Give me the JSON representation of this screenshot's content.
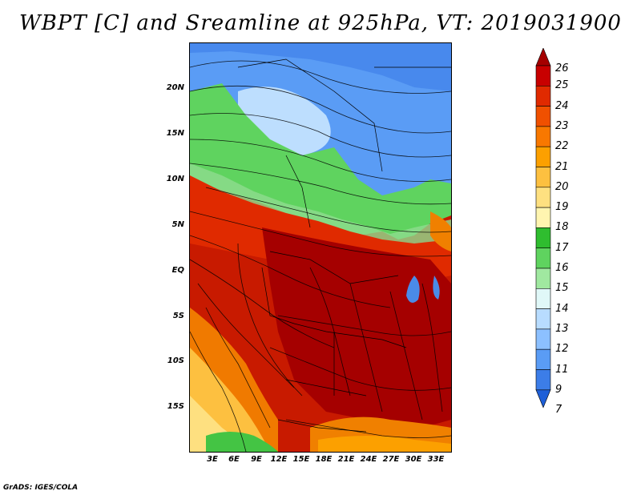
{
  "title": "WBPT [C] and Sreamline at 925hPa, VT: 2019031900",
  "footer": "GrADS: IGES/COLA",
  "lat_labels": [
    "20N",
    "15N",
    "10N",
    "5N",
    "EQ",
    "5S",
    "10S",
    "15S"
  ],
  "lon_labels": [
    "3E",
    "6E",
    "9E",
    "12E",
    "15E",
    "18E",
    "21E",
    "24E",
    "27E",
    "30E",
    "33E"
  ],
  "colorbar": {
    "labels": [
      "26",
      "25",
      "24",
      "23",
      "22",
      "21",
      "20",
      "19",
      "18",
      "17",
      "16",
      "15",
      "14",
      "13",
      "12",
      "11",
      "9",
      "7"
    ],
    "colors": [
      "#a50000",
      "#c80000",
      "#e02a00",
      "#f05000",
      "#f87800",
      "#fca000",
      "#fdc040",
      "#fee080",
      "#fff5b0",
      "#2fbd2f",
      "#5fd35f",
      "#a0e8a0",
      "#e0f8f8",
      "#b8dcff",
      "#8cc0ff",
      "#5a9cf5",
      "#3c7de8",
      "#1e5fd8"
    ]
  },
  "legend_colors": {
    "dark_red": "#b00000",
    "red": "#d42000",
    "orange": "#f08000",
    "yellow": "#fdd870",
    "green": "#44c444",
    "light_green": "#8fdc8f",
    "light_blue": "#c8e6ff",
    "blue": "#6aa8f0",
    "deep_blue": "#3a80e8"
  }
}
